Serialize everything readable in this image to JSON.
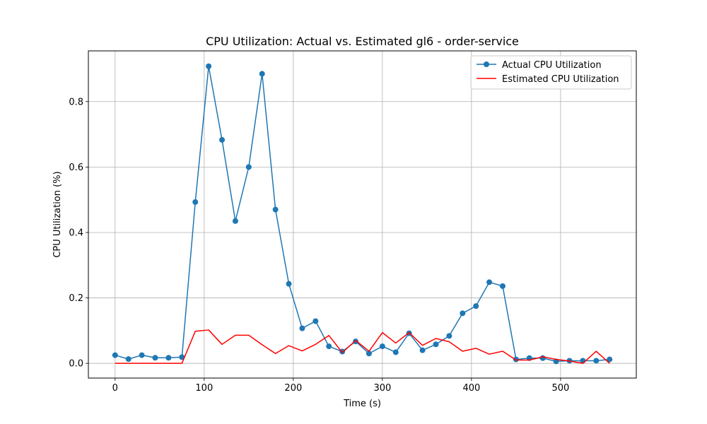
{
  "chart_data": {
    "type": "line",
    "title": "CPU Utilization: Actual vs. Estimated gl6 - order-service",
    "xlabel": "Time (s)",
    "ylabel": "CPU Utilization (%)",
    "xlim": [
      -30,
      585
    ],
    "ylim": [
      -0.045,
      0.955
    ],
    "xticks": [
      0,
      100,
      200,
      300,
      400,
      500
    ],
    "yticks": [
      0.0,
      0.2,
      0.4,
      0.6,
      0.8
    ],
    "xtick_labels": [
      "0",
      "100",
      "200",
      "300",
      "400",
      "500"
    ],
    "ytick_labels": [
      "0.0",
      "0.2",
      "0.4",
      "0.6",
      "0.8"
    ],
    "grid": true,
    "legend_position": "top-right",
    "x": [
      0,
      15,
      30,
      45,
      60,
      75,
      90,
      105,
      120,
      135,
      150,
      165,
      180,
      195,
      210,
      225,
      240,
      255,
      270,
      285,
      300,
      315,
      330,
      345,
      360,
      375,
      390,
      405,
      420,
      435,
      450,
      465,
      480,
      495,
      510,
      525,
      540,
      555
    ],
    "series": [
      {
        "name": "Actual CPU Utilization",
        "color": "#1f77b4",
        "marker": "circle",
        "values": [
          0.025,
          0.013,
          0.025,
          0.017,
          0.017,
          0.019,
          0.493,
          0.908,
          0.683,
          0.435,
          0.6,
          0.885,
          0.47,
          0.243,
          0.107,
          0.129,
          0.052,
          0.036,
          0.067,
          0.03,
          0.052,
          0.034,
          0.092,
          0.04,
          0.058,
          0.084,
          0.153,
          0.175,
          0.248,
          0.236,
          0.012,
          0.016,
          0.016,
          0.006,
          0.008,
          0.008,
          0.008,
          0.012
        ]
      },
      {
        "name": "Estimated CPU Utilization",
        "color": "#ff0000",
        "marker": "none",
        "values": [
          0.0,
          0.0,
          0.0,
          0.0,
          0.0,
          0.0,
          0.098,
          0.102,
          0.058,
          0.086,
          0.086,
          0.057,
          0.03,
          0.054,
          0.038,
          0.058,
          0.085,
          0.033,
          0.07,
          0.037,
          0.094,
          0.062,
          0.094,
          0.055,
          0.076,
          0.066,
          0.037,
          0.046,
          0.028,
          0.037,
          0.01,
          0.01,
          0.02,
          0.012,
          0.007,
          0.0,
          0.037,
          0.0
        ]
      }
    ]
  }
}
